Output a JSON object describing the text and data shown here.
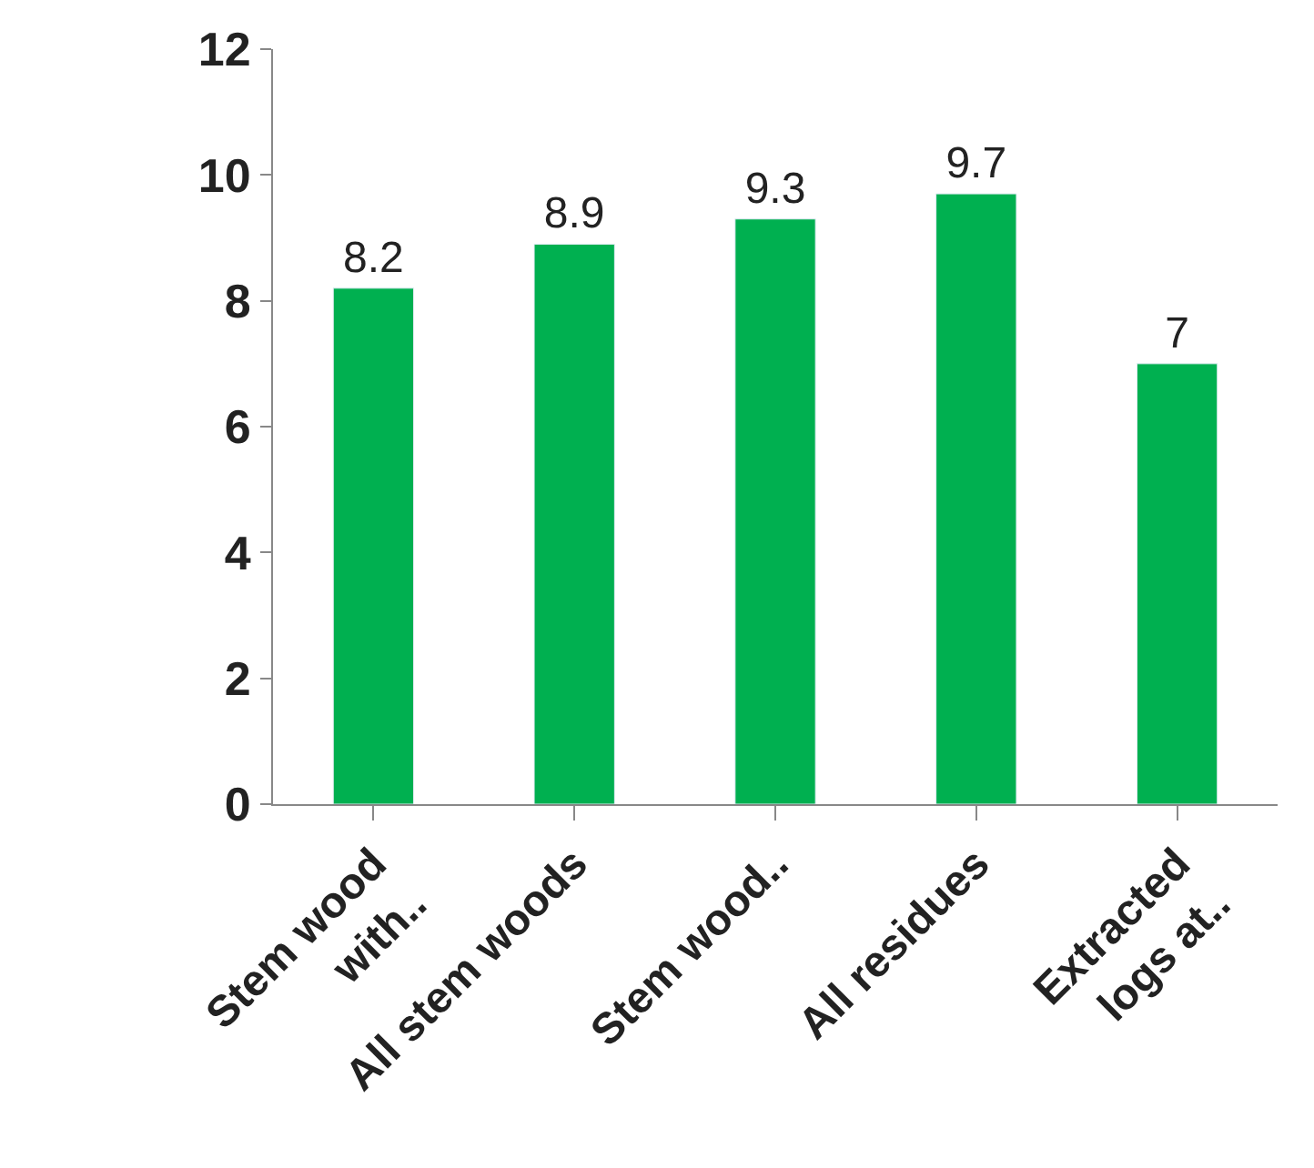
{
  "chart_data": {
    "type": "bar",
    "categories": [
      "Stem wood with..",
      "All stem woods",
      "Stem wood..",
      "All residues",
      "Extracted logs at.."
    ],
    "values": [
      8.2,
      8.9,
      9.3,
      9.7,
      7
    ],
    "color": "#00b050",
    "ylim": [
      0,
      12
    ],
    "yticks": [
      0,
      2,
      4,
      6,
      8,
      10,
      12
    ],
    "legend": false,
    "data_labels": true
  }
}
